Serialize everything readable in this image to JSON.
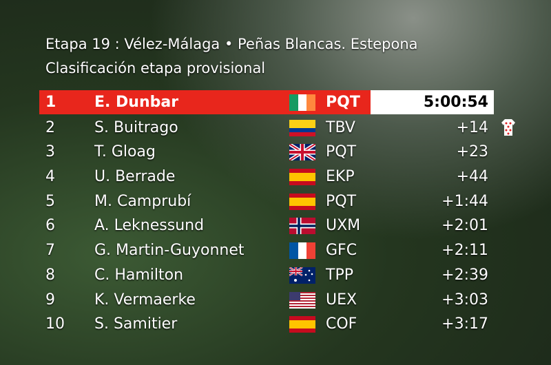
{
  "header": {
    "title": "Etapa 19 : Vélez-Málaga • Peñas Blancas. Estepona",
    "subtitle": "Clasificación etapa provisional"
  },
  "rows": [
    [
      "1",
      "E. Dunbar",
      "PQT",
      "5:00:54"
    ],
    [
      "2",
      "S. Buitrago",
      "TBV",
      "+14"
    ],
    [
      "3",
      "T. Gloag",
      "PQT",
      "+23"
    ],
    [
      "4",
      "U. Berrade",
      "EKP",
      "+44"
    ],
    [
      "5",
      "M. Camprubí",
      "PQT",
      "+1:44"
    ],
    [
      "6",
      "A. Leknessund",
      "UXM",
      "+2:01"
    ],
    [
      "7",
      "G. Martin-Guyonnet",
      "GFC",
      "+2:11"
    ],
    [
      "8",
      "C. Hamilton",
      "TPP",
      "+2:39"
    ],
    [
      "9",
      "K. Vermaerke",
      "UEX",
      "+3:03"
    ],
    [
      "10",
      "S. Samitier",
      "COF",
      "+3:17"
    ]
  ]
}
